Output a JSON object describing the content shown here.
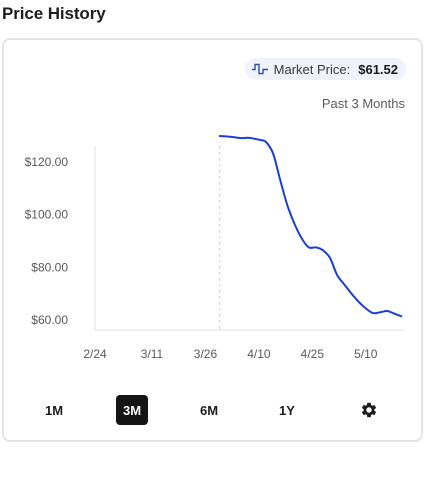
{
  "page": {
    "title": "Price History"
  },
  "market": {
    "label": "Market Price:",
    "value": "$61.52"
  },
  "range_label": "Past 3 Months",
  "range_buttons": [
    {
      "label": "1M",
      "active": false
    },
    {
      "label": "3M",
      "active": true
    },
    {
      "label": "6M",
      "active": false
    },
    {
      "label": "1Y",
      "active": false
    }
  ],
  "icons": {
    "pill": "price-chart-icon",
    "settings": "gear-icon"
  },
  "colors": {
    "line": "#1a3fd6",
    "grid": "#e0e0e0",
    "active_button": "#141414",
    "pill_bg": "#eef3fc"
  },
  "chart_data": {
    "type": "line",
    "title": "",
    "xlabel": "",
    "ylabel": "",
    "x_tick_labels": [
      "2/24",
      "3/11",
      "3/26",
      "4/10",
      "4/25",
      "5/10"
    ],
    "y_tick_labels": [
      "$120.00",
      "$100.00",
      "$80.00",
      "$60.00"
    ],
    "y_ticks": [
      120,
      100,
      80,
      60
    ],
    "ylim": [
      56.3,
      126.0
    ],
    "xlim": [
      "2/24",
      "5/21"
    ],
    "x_ticks": [
      "2/24",
      "3/11",
      "3/26",
      "4/10",
      "4/25",
      "5/10"
    ],
    "data_start_marker": "3/30",
    "series": [
      {
        "values": [
          {
            "x": "3/30",
            "y": 129.8
          },
          {
            "x": "4/2",
            "y": 129.5
          },
          {
            "x": "4/5",
            "y": 129.0
          },
          {
            "x": "4/7",
            "y": 129.1
          },
          {
            "x": "4/10",
            "y": 128.4
          },
          {
            "x": "4/12",
            "y": 127.5
          },
          {
            "x": "4/14",
            "y": 123.0
          },
          {
            "x": "4/16",
            "y": 113.0
          },
          {
            "x": "4/18",
            "y": 103.5
          },
          {
            "x": "4/20",
            "y": 96.5
          },
          {
            "x": "4/22",
            "y": 91.0
          },
          {
            "x": "4/24",
            "y": 87.6
          },
          {
            "x": "4/26",
            "y": 87.6
          },
          {
            "x": "4/28",
            "y": 86.5
          },
          {
            "x": "4/30",
            "y": 83.5
          },
          {
            "x": "5/2",
            "y": 77.0
          },
          {
            "x": "5/4",
            "y": 73.5
          },
          {
            "x": "5/6",
            "y": 70.0
          },
          {
            "x": "5/8",
            "y": 67.0
          },
          {
            "x": "5/10",
            "y": 64.5
          },
          {
            "x": "5/12",
            "y": 62.7
          },
          {
            "x": "5/14",
            "y": 63.0
          },
          {
            "x": "5/16",
            "y": 63.5
          },
          {
            "x": "5/18",
            "y": 62.5
          },
          {
            "x": "5/20",
            "y": 61.5
          }
        ]
      }
    ]
  }
}
